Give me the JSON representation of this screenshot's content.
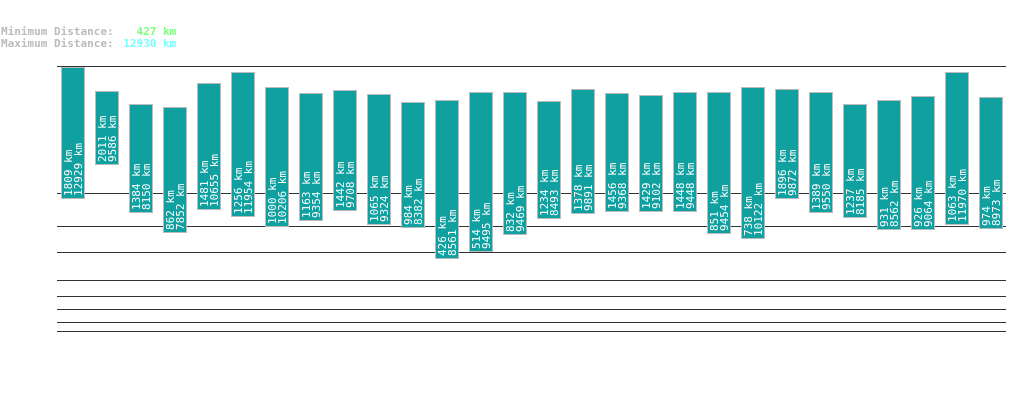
{
  "summary": {
    "min_label": "Minimum Distance:",
    "min_value": "427 km",
    "min_color": "#7cff7c",
    "max_label": "Maximum Distance:",
    "max_value": "12930 km",
    "max_color": "#7cffff"
  },
  "chart_data": {
    "type": "bar",
    "unit": "km",
    "bar_color": "#11a0a0",
    "series": [
      {
        "values_min": [
          1809,
          2011,
          1384,
          862,
          1481,
          1256,
          1000,
          1163,
          1442,
          1065,
          984,
          426,
          514,
          832,
          1234,
          1378,
          1456,
          1429,
          1448,
          851,
          738,
          1896,
          1389,
          1237,
          931,
          926,
          1063,
          974
        ]
      },
      {
        "values_max": [
          12929,
          9586,
          8150,
          7852,
          10655,
          11954,
          10206,
          9354,
          9708,
          9324,
          8382,
          8561,
          9495,
          9469,
          8493,
          9891,
          9368,
          9102,
          9448,
          9454,
          10122,
          9872,
          9550,
          8185,
          8562,
          9064,
          11970,
          8973
        ]
      }
    ]
  }
}
